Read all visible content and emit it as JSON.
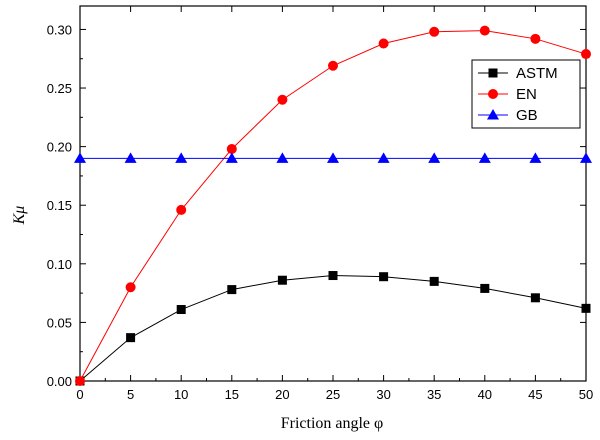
{
  "chart_data": {
    "type": "line",
    "title": "",
    "xlabel": "Friction angle φ",
    "ylabel": "Kμ",
    "xlim": [
      0,
      50
    ],
    "ylim": [
      0,
      0.32
    ],
    "x_ticks": [
      0,
      5,
      10,
      15,
      20,
      25,
      30,
      35,
      40,
      45,
      50
    ],
    "y_ticks": [
      0.0,
      0.05,
      0.1,
      0.15,
      0.2,
      0.25,
      0.3
    ],
    "grid": false,
    "legend_position": "top-right",
    "x": [
      0,
      5,
      10,
      15,
      20,
      25,
      30,
      35,
      40,
      45,
      50
    ],
    "series": [
      {
        "name": "ASTM",
        "color": "#000000",
        "marker": "square",
        "values": [
          0.0,
          0.037,
          0.061,
          0.078,
          0.086,
          0.09,
          0.089,
          0.085,
          0.079,
          0.071,
          0.062
        ]
      },
      {
        "name": "EN",
        "color": "#ff0000",
        "marker": "circle",
        "values": [
          0.0,
          0.08,
          0.146,
          0.198,
          0.24,
          0.269,
          0.288,
          0.298,
          0.299,
          0.292,
          0.279
        ]
      },
      {
        "name": "GB",
        "color": "#0000ff",
        "marker": "triangle",
        "values": [
          0.19,
          0.19,
          0.19,
          0.19,
          0.19,
          0.19,
          0.19,
          0.19,
          0.19,
          0.19,
          0.19
        ]
      }
    ]
  }
}
